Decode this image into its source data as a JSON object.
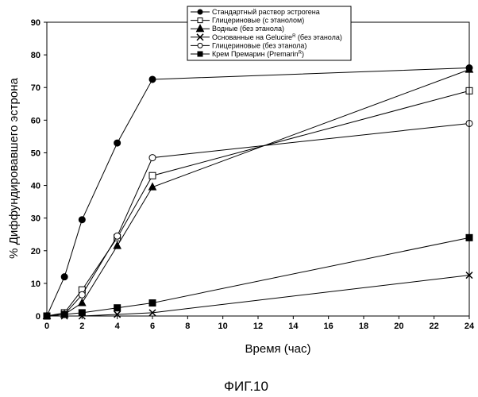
{
  "chart_data": {
    "type": "line",
    "xlabel": "Время (час)",
    "ylabel": "% Диффундировавшего эстрона",
    "xlim": [
      0,
      24
    ],
    "ylim": [
      0,
      90
    ],
    "xticks": [
      "0",
      "2",
      "4",
      "6",
      "8",
      "10",
      "12",
      "14",
      "16",
      "18",
      "20",
      "22",
      "24"
    ],
    "yticks": [
      "0",
      "10",
      "20",
      "30",
      "40",
      "50",
      "60",
      "70",
      "80",
      "90"
    ],
    "grid": false,
    "legend_position": "top-center",
    "caption": "ФИГ.10",
    "series": [
      {
        "name": "Стандартный раствор эстрогена",
        "marker": "filled-circle",
        "x": [
          0,
          1,
          2,
          4,
          6,
          24
        ],
        "y": [
          0,
          12,
          29.5,
          53,
          72.5,
          76
        ]
      },
      {
        "name": "Глицериновые (с этанолом)",
        "marker": "open-square",
        "x": [
          0,
          1,
          2,
          4,
          6,
          24
        ],
        "y": [
          0,
          1,
          8,
          24,
          43,
          69
        ]
      },
      {
        "name": "Водные (без этанола)",
        "marker": "filled-triangle",
        "x": [
          0,
          1,
          2,
          4,
          6,
          24
        ],
        "y": [
          0,
          0.5,
          4,
          21.5,
          39.5,
          75.5
        ]
      },
      {
        "name": "Основанные на Gelucire",
        "name_sup": "R",
        "name_suffix": " (без этанола)",
        "marker": "x",
        "x": [
          0,
          1,
          2,
          4,
          6,
          24
        ],
        "y": [
          0,
          0,
          0,
          0.5,
          1,
          12.5
        ]
      },
      {
        "name": "Глицериновые (без этанола)",
        "marker": "open-circle",
        "x": [
          0,
          1,
          2,
          4,
          6,
          24
        ],
        "y": [
          0,
          0.5,
          6.5,
          24.5,
          48.5,
          59
        ]
      },
      {
        "name": "Крем Премарин (Premarin",
        "name_sup": "R",
        "name_suffix": ")",
        "marker": "filled-square",
        "x": [
          0,
          1,
          2,
          4,
          6,
          24
        ],
        "y": [
          0,
          0.5,
          1,
          2.5,
          4,
          24
        ]
      }
    ]
  }
}
